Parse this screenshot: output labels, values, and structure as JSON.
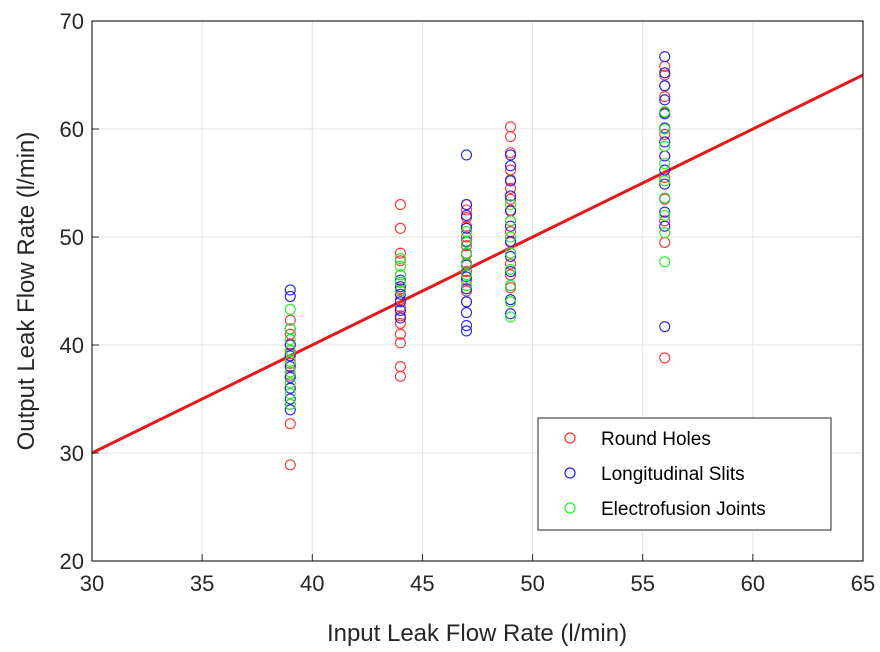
{
  "chart_data": {
    "type": "scatter",
    "xlabel": "Input Leak Flow Rate (l/min)",
    "ylabel": "Output Leak Flow Rate (l/min)",
    "xlim": [
      30,
      65
    ],
    "ylim": [
      20,
      70
    ],
    "xticks": [
      30,
      35,
      40,
      45,
      50,
      55,
      60,
      65
    ],
    "yticks": [
      20,
      30,
      40,
      50,
      60,
      70
    ],
    "grid": true,
    "legend_position": "bottom-right",
    "reference_line": {
      "x": [
        30,
        65
      ],
      "y": [
        30,
        65
      ],
      "color": "#e31a1c"
    },
    "series": [
      {
        "name": "Round Holes",
        "color": "#ff3333",
        "points": [
          [
            39,
            28.9
          ],
          [
            39,
            32.7
          ],
          [
            39,
            34.5
          ],
          [
            39,
            36.0
          ],
          [
            39,
            37.2
          ],
          [
            39,
            38.3
          ],
          [
            39,
            39.2
          ],
          [
            39,
            40.1
          ],
          [
            39,
            41.0
          ],
          [
            39,
            41.5
          ],
          [
            39,
            42.3
          ],
          [
            44,
            37.1
          ],
          [
            44,
            38.0
          ],
          [
            44,
            40.2
          ],
          [
            44,
            41.0
          ],
          [
            44,
            42.0
          ],
          [
            44,
            42.7
          ],
          [
            44,
            43.5
          ],
          [
            44,
            44.2
          ],
          [
            44,
            45.2
          ],
          [
            44,
            46.5
          ],
          [
            44,
            47.8
          ],
          [
            44,
            48.5
          ],
          [
            44,
            50.8
          ],
          [
            44,
            53.0
          ],
          [
            47,
            44.0
          ],
          [
            47,
            45.0
          ],
          [
            47,
            46.0
          ],
          [
            47,
            46.8
          ],
          [
            47,
            47.6
          ],
          [
            47,
            48.4
          ],
          [
            47,
            49.2
          ],
          [
            47,
            50.0
          ],
          [
            47,
            51.0
          ],
          [
            47,
            51.8
          ],
          [
            47,
            52.5
          ],
          [
            47,
            53.0
          ],
          [
            49,
            44.0
          ],
          [
            49,
            45.3
          ],
          [
            49,
            46.5
          ],
          [
            49,
            47.5
          ],
          [
            49,
            48.5
          ],
          [
            49,
            49.5
          ],
          [
            49,
            50.5
          ],
          [
            49,
            51.5
          ],
          [
            49,
            52.5
          ],
          [
            49,
            53.5
          ],
          [
            49,
            54.5
          ],
          [
            49,
            55.3
          ],
          [
            49,
            56.2
          ],
          [
            49,
            57.8
          ],
          [
            49,
            59.3
          ],
          [
            49,
            60.2
          ],
          [
            56,
            38.8
          ],
          [
            56,
            49.5
          ],
          [
            56,
            51.5
          ],
          [
            56,
            53.5
          ],
          [
            56,
            55.5
          ],
          [
            56,
            57.5
          ],
          [
            56,
            59.5
          ],
          [
            56,
            61.5
          ],
          [
            56,
            63.0
          ],
          [
            56,
            64.0
          ],
          [
            56,
            65.0
          ],
          [
            56,
            65.8
          ]
        ]
      },
      {
        "name": "Longitudinal Slits",
        "color": "#2222ee",
        "points": [
          [
            39,
            34.0
          ],
          [
            39,
            35.0
          ],
          [
            39,
            36.0
          ],
          [
            39,
            37.0
          ],
          [
            39,
            38.0
          ],
          [
            39,
            39.0
          ],
          [
            39,
            40.0
          ],
          [
            39,
            41.5
          ],
          [
            39,
            44.5
          ],
          [
            39,
            45.1
          ],
          [
            44,
            42.5
          ],
          [
            44,
            43.2
          ],
          [
            44,
            44.0
          ],
          [
            44,
            44.7
          ],
          [
            44,
            45.4
          ],
          [
            44,
            46.0
          ],
          [
            47,
            41.3
          ],
          [
            47,
            41.8
          ],
          [
            47,
            43.0
          ],
          [
            47,
            44.0
          ],
          [
            47,
            45.2
          ],
          [
            47,
            46.3
          ],
          [
            47,
            47.4
          ],
          [
            47,
            48.5
          ],
          [
            47,
            49.6
          ],
          [
            47,
            50.8
          ],
          [
            47,
            52.0
          ],
          [
            47,
            53.0
          ],
          [
            47,
            57.6
          ],
          [
            49,
            42.9
          ],
          [
            49,
            44.2
          ],
          [
            49,
            45.5
          ],
          [
            49,
            46.8
          ],
          [
            49,
            48.2
          ],
          [
            49,
            49.6
          ],
          [
            49,
            51.0
          ],
          [
            49,
            52.4
          ],
          [
            49,
            53.8
          ],
          [
            49,
            55.2
          ],
          [
            49,
            56.6
          ],
          [
            49,
            57.6
          ],
          [
            56,
            41.7
          ],
          [
            56,
            51.0
          ],
          [
            56,
            52.3
          ],
          [
            56,
            53.6
          ],
          [
            56,
            54.9
          ],
          [
            56,
            56.2
          ],
          [
            56,
            57.5
          ],
          [
            56,
            58.8
          ],
          [
            56,
            60.1
          ],
          [
            56,
            61.4
          ],
          [
            56,
            62.7
          ],
          [
            56,
            64.0
          ],
          [
            56,
            65.2
          ],
          [
            56,
            66.7
          ]
        ]
      },
      {
        "name": "Electrofusion Joints",
        "color": "#22ee22",
        "points": [
          [
            39,
            34.5
          ],
          [
            39,
            35.5
          ],
          [
            39,
            36.5
          ],
          [
            39,
            37.5
          ],
          [
            39,
            38.5
          ],
          [
            39,
            39.5
          ],
          [
            39,
            40.5
          ],
          [
            39,
            41.5
          ],
          [
            39,
            43.3
          ],
          [
            44,
            45.0
          ],
          [
            44,
            45.8
          ],
          [
            44,
            46.5
          ],
          [
            44,
            47.3
          ],
          [
            44,
            48.0
          ],
          [
            47,
            45.5
          ],
          [
            47,
            46.5
          ],
          [
            47,
            47.5
          ],
          [
            47,
            48.5
          ],
          [
            47,
            49.5
          ],
          [
            47,
            50.5
          ],
          [
            49,
            42.6
          ],
          [
            49,
            44.0
          ],
          [
            49,
            45.5
          ],
          [
            49,
            47.0
          ],
          [
            49,
            48.5
          ],
          [
            49,
            50.0
          ],
          [
            49,
            51.5
          ],
          [
            49,
            53.0
          ],
          [
            56,
            47.7
          ],
          [
            56,
            50.4
          ],
          [
            56,
            52.0
          ],
          [
            56,
            53.6
          ],
          [
            56,
            55.2
          ],
          [
            56,
            56.8
          ],
          [
            56,
            58.4
          ],
          [
            56,
            60.0
          ],
          [
            56,
            61.6
          ]
        ]
      }
    ]
  }
}
